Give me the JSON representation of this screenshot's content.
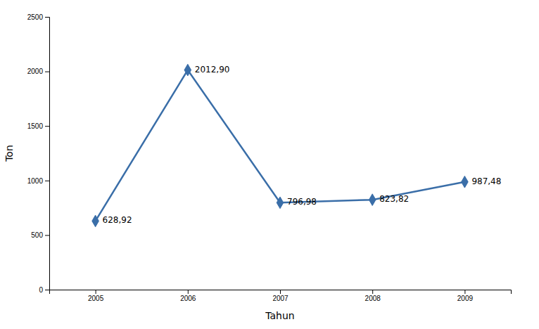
{
  "chart_data": {
    "type": "line",
    "x": [
      2005,
      2006,
      2007,
      2008,
      2009
    ],
    "values": [
      628.92,
      2012.9,
      796.98,
      823.82,
      987.48
    ],
    "value_labels": [
      "628,92",
      "2012,90",
      "796,98",
      "823,82",
      "987,48"
    ],
    "data_labels": true,
    "xlabel": "Tahun",
    "ylabel": "Ton",
    "xlim": [
      2004.5,
      2009.5
    ],
    "xticks": [
      2005,
      2006,
      2007,
      2008,
      2009
    ],
    "ylim": [
      0,
      2500
    ],
    "yticks": [
      0,
      500,
      1000,
      1500,
      2000,
      2500
    ],
    "color": "#3A6EA8",
    "marker": "diamond",
    "grid": false
  }
}
